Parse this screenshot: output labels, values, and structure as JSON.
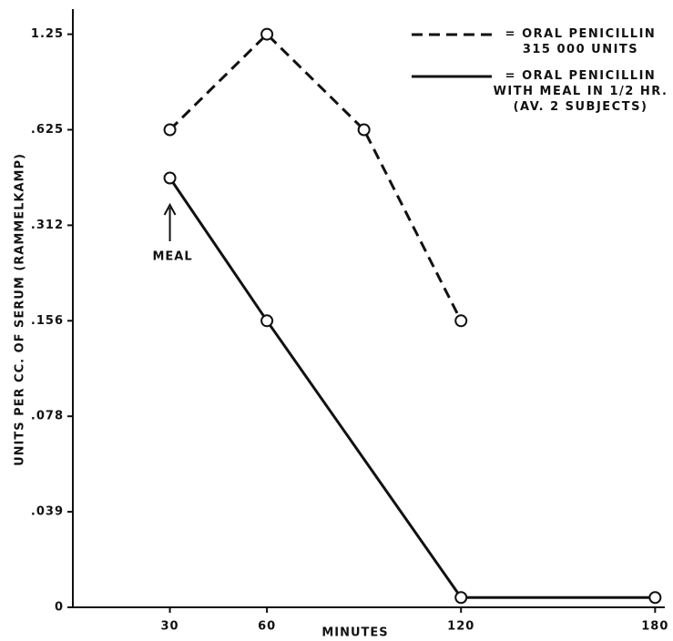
{
  "chart_data": {
    "type": "line",
    "y_label": "UNITS PER CC. OF SERUM (RAMMELKAMP)",
    "x_label": "MINUTES",
    "annotation": "MEAL",
    "xlim": [
      0,
      183
    ],
    "xticks": [
      30,
      60,
      120,
      180
    ],
    "ylim": [
      0,
      1.5
    ],
    "yscale": "log",
    "yticks": [
      0,
      {
        "value": 0.039,
        "label": ".039"
      },
      {
        "value": 0.078,
        "label": ".078"
      },
      {
        "value": 0.156,
        "label": ".156"
      },
      {
        "value": 0.312,
        "label": ".312"
      },
      {
        "value": 0.625,
        "label": ".625"
      },
      1.25
    ],
    "series": [
      {
        "name": "= ORAL PENICILLIN\n315 000 UNITS",
        "color": "#111",
        "dash": true,
        "x": [
          30,
          60,
          90,
          120
        ],
        "values": [
          0.625,
          1.25,
          0.625,
          0.156
        ]
      },
      {
        "name": "= ORAL PENICILLIN\nWITH MEAL IN 1/2 HR.\n(AV. 2 SUBJECTS)",
        "color": "#111",
        "dash": false,
        "x": [
          30,
          60,
          120,
          180
        ],
        "values": [
          0.44,
          0.156,
          0.004,
          0.004
        ]
      }
    ]
  }
}
